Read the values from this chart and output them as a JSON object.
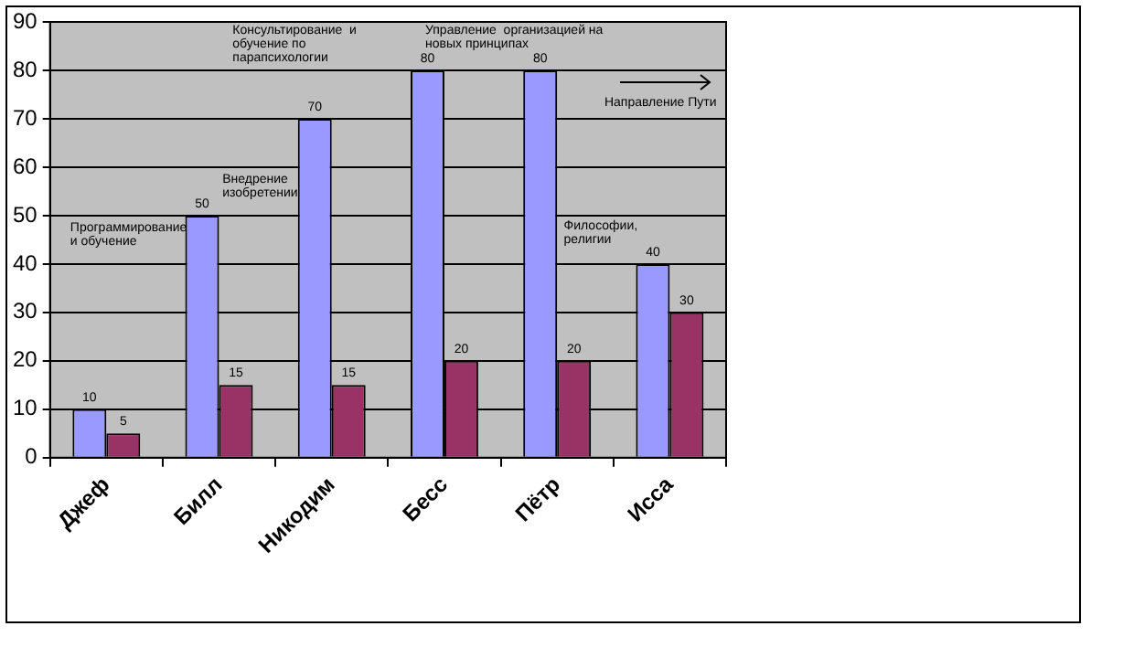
{
  "chart_data": {
    "type": "bar",
    "categories": [
      "Джеф",
      "Билл",
      "Никодим",
      "Бесс",
      "Пётр",
      "Исса"
    ],
    "series": [
      {
        "color": "#9999ff",
        "values": [
          10,
          50,
          70,
          80,
          80,
          40
        ]
      },
      {
        "color": "#993366",
        "values": [
          5,
          15,
          15,
          20,
          20,
          30
        ]
      }
    ],
    "ylim": [
      0,
      90
    ],
    "yticks": [
      0,
      10,
      20,
      30,
      40,
      50,
      60,
      70,
      80,
      90
    ],
    "grid": "y",
    "legend": false,
    "data_labels": true,
    "annotations": [
      "Программирование и обучение",
      "Внедрение изобретении",
      "Консультирование  и обучение по парапсихологии",
      "Управление  организацией на новых принципах",
      "Философии, религии",
      "Направление Пути"
    ]
  }
}
